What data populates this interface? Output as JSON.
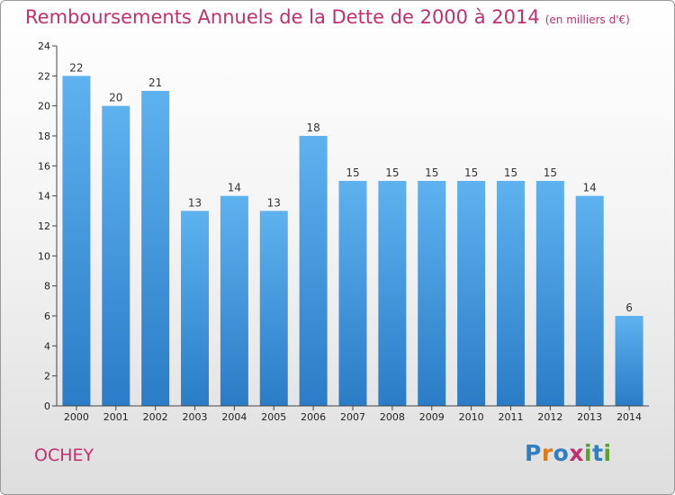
{
  "chart_data": {
    "type": "bar",
    "title": "Remboursements Annuels de la Dette de 2000 à 2014",
    "unit": "(en milliers d'€)",
    "xlabel": "",
    "ylabel": "",
    "categories": [
      "2000",
      "2001",
      "2002",
      "2003",
      "2004",
      "2005",
      "2006",
      "2007",
      "2008",
      "2009",
      "2010",
      "2011",
      "2012",
      "2013",
      "2014"
    ],
    "values": [
      22,
      20,
      21,
      13,
      14,
      13,
      18,
      15,
      15,
      15,
      15,
      15,
      15,
      14,
      6
    ],
    "ylim": [
      0,
      24
    ],
    "yticks": [
      0,
      2,
      4,
      6,
      8,
      10,
      12,
      14,
      16,
      18,
      20,
      22,
      24
    ],
    "grid": false,
    "bar_color": "#3a8fd9",
    "title_color": "#c0306e"
  },
  "footer": {
    "commune": "OCHEY",
    "logo": {
      "text": "Proxiti",
      "letters": [
        {
          "ch": "P",
          "color": "#2f7fc1"
        },
        {
          "ch": "r",
          "color": "#e07b1a"
        },
        {
          "ch": "o",
          "color": "#2f7fc1"
        },
        {
          "ch": "x",
          "color": "#c0306e"
        },
        {
          "ch": "i",
          "color": "#5aa02c"
        },
        {
          "ch": "t",
          "color": "#2f7fc1"
        },
        {
          "ch": "i",
          "color": "#5aa02c"
        }
      ]
    }
  }
}
